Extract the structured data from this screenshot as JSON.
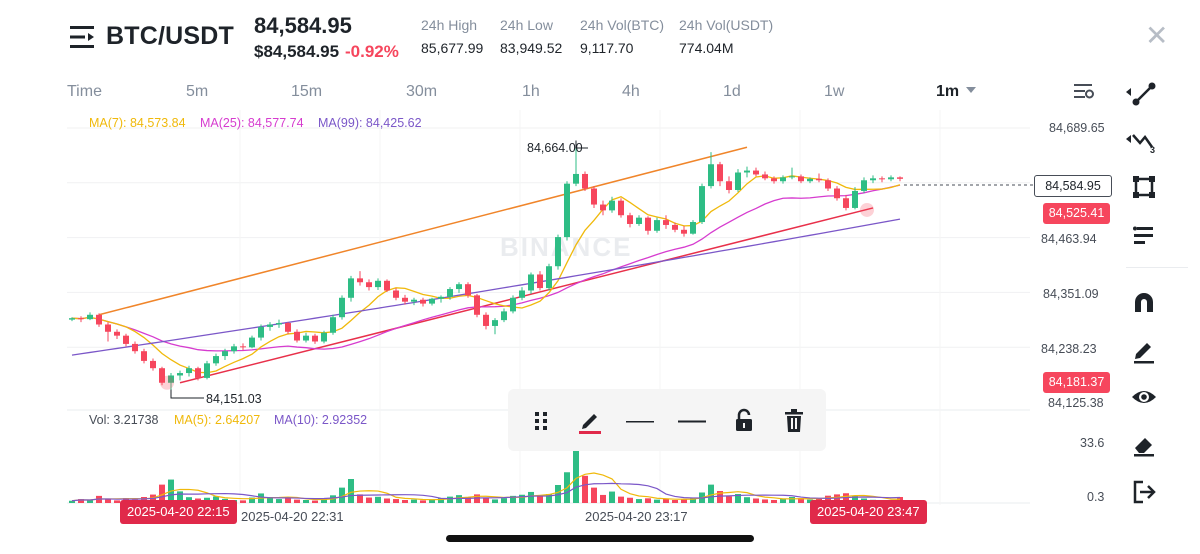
{
  "header": {
    "pair": "BTC/USDT",
    "last_price": "84,584.95",
    "last_price_usd": "$84,584.95",
    "change": "-0.92%",
    "stats": [
      {
        "label": "24h High",
        "value": "85,677.99"
      },
      {
        "label": "24h Low",
        "value": "83,949.52"
      },
      {
        "label": "24h Vol(BTC)",
        "value": "9,117.70"
      },
      {
        "label": "24h Vol(USDT)",
        "value": "774.04M"
      }
    ]
  },
  "timeframes": [
    "Time",
    "5m",
    "15m",
    "30m",
    "1h",
    "4h",
    "1d",
    "1w",
    "1m"
  ],
  "active_timeframe": "1m",
  "ma_legend": {
    "ma7": "MA(7): 84,573.84",
    "ma25": "MA(25): 84,577.74",
    "ma99": "MA(99): 84,425.62"
  },
  "vol_legend": {
    "vol": "Vol: 3.21738",
    "ma5": "MA(5): 2.64207",
    "ma10": "MA(10): 2.92352"
  },
  "price_axis": [
    "84,689.65",
    "84,463.94",
    "84,351.09",
    "84,238.23",
    "84,125.38"
  ],
  "volume_axis": [
    "33.6",
    "0.3"
  ],
  "current_price_tag": "84,584.95",
  "red_tags": [
    "84,525.41",
    "84,181.37"
  ],
  "annotations": {
    "high": "84,664.00",
    "low": "84,151.03"
  },
  "time_labels": [
    "2025-04-20 22:31",
    "2025-04-20 23:17"
  ],
  "time_tags": [
    "2025-04-20 22:15",
    "2025-04-20 23:47"
  ],
  "watermark": "BINANCE",
  "colors": {
    "up": "#2ebd85",
    "down": "#f6465d",
    "ma7": "#f0b90b",
    "ma25": "#d63ccf",
    "ma99": "#7b57c8",
    "channel_top": "#f0852a",
    "channel_bottom": "#e8304a"
  },
  "candles": [
    {
      "o": 84295,
      "h": 84300,
      "l": 84292,
      "c": 84298
    },
    {
      "o": 84298,
      "h": 84302,
      "l": 84290,
      "c": 84296
    },
    {
      "o": 84296,
      "h": 84310,
      "l": 84294,
      "c": 84305
    },
    {
      "o": 84305,
      "h": 84308,
      "l": 84280,
      "c": 84285
    },
    {
      "o": 84285,
      "h": 84290,
      "l": 84250,
      "c": 84270
    },
    {
      "o": 84270,
      "h": 84275,
      "l": 84255,
      "c": 84262
    },
    {
      "o": 84262,
      "h": 84266,
      "l": 84240,
      "c": 84245
    },
    {
      "o": 84245,
      "h": 84250,
      "l": 84225,
      "c": 84230
    },
    {
      "o": 84230,
      "h": 84235,
      "l": 84205,
      "c": 84210
    },
    {
      "o": 84210,
      "h": 84215,
      "l": 84190,
      "c": 84195
    },
    {
      "o": 84195,
      "h": 84198,
      "l": 84160,
      "c": 84165
    },
    {
      "o": 84165,
      "h": 84185,
      "l": 84151,
      "c": 84180
    },
    {
      "o": 84180,
      "h": 84190,
      "l": 84170,
      "c": 84185
    },
    {
      "o": 84185,
      "h": 84200,
      "l": 84178,
      "c": 84195
    },
    {
      "o": 84195,
      "h": 84198,
      "l": 84170,
      "c": 84175
    },
    {
      "o": 84175,
      "h": 84210,
      "l": 84172,
      "c": 84205
    },
    {
      "o": 84205,
      "h": 84225,
      "l": 84200,
      "c": 84220
    },
    {
      "o": 84220,
      "h": 84235,
      "l": 84212,
      "c": 84230
    },
    {
      "o": 84230,
      "h": 84245,
      "l": 84225,
      "c": 84240
    },
    {
      "o": 84240,
      "h": 84246,
      "l": 84232,
      "c": 84238
    },
    {
      "o": 84238,
      "h": 84262,
      "l": 84236,
      "c": 84258
    },
    {
      "o": 84258,
      "h": 84285,
      "l": 84252,
      "c": 84280
    },
    {
      "o": 84280,
      "h": 84290,
      "l": 84272,
      "c": 84285
    },
    {
      "o": 84285,
      "h": 84295,
      "l": 84278,
      "c": 84288
    },
    {
      "o": 84288,
      "h": 84290,
      "l": 84265,
      "c": 84270
    },
    {
      "o": 84270,
      "h": 84275,
      "l": 84248,
      "c": 84252
    },
    {
      "o": 84252,
      "h": 84268,
      "l": 84248,
      "c": 84262
    },
    {
      "o": 84262,
      "h": 84266,
      "l": 84245,
      "c": 84250
    },
    {
      "o": 84250,
      "h": 84272,
      "l": 84246,
      "c": 84268
    },
    {
      "o": 84268,
      "h": 84305,
      "l": 84264,
      "c": 84300
    },
    {
      "o": 84300,
      "h": 84345,
      "l": 84295,
      "c": 84340
    },
    {
      "o": 84340,
      "h": 84385,
      "l": 84332,
      "c": 84380
    },
    {
      "o": 84380,
      "h": 84395,
      "l": 84365,
      "c": 84372
    },
    {
      "o": 84372,
      "h": 84378,
      "l": 84355,
      "c": 84362
    },
    {
      "o": 84362,
      "h": 84380,
      "l": 84356,
      "c": 84375
    },
    {
      "o": 84375,
      "h": 84378,
      "l": 84352,
      "c": 84355
    },
    {
      "o": 84355,
      "h": 84360,
      "l": 84335,
      "c": 84340
    },
    {
      "o": 84340,
      "h": 84346,
      "l": 84326,
      "c": 84332
    },
    {
      "o": 84332,
      "h": 84340,
      "l": 84325,
      "c": 84336
    },
    {
      "o": 84336,
      "h": 84340,
      "l": 84322,
      "c": 84328
    },
    {
      "o": 84328,
      "h": 84340,
      "l": 84324,
      "c": 84338
    },
    {
      "o": 84338,
      "h": 84345,
      "l": 84330,
      "c": 84342
    },
    {
      "o": 84342,
      "h": 84362,
      "l": 84336,
      "c": 84358
    },
    {
      "o": 84358,
      "h": 84372,
      "l": 84350,
      "c": 84368
    },
    {
      "o": 84368,
      "h": 84372,
      "l": 84340,
      "c": 84345
    },
    {
      "o": 84345,
      "h": 84348,
      "l": 84300,
      "c": 84305
    },
    {
      "o": 84305,
      "h": 84310,
      "l": 84275,
      "c": 84282
    },
    {
      "o": 84282,
      "h": 84298,
      "l": 84265,
      "c": 84294
    },
    {
      "o": 84294,
      "h": 84318,
      "l": 84290,
      "c": 84312
    },
    {
      "o": 84312,
      "h": 84345,
      "l": 84308,
      "c": 84340
    },
    {
      "o": 84340,
      "h": 84362,
      "l": 84335,
      "c": 84355
    },
    {
      "o": 84355,
      "h": 84392,
      "l": 84348,
      "c": 84388
    },
    {
      "o": 84388,
      "h": 84395,
      "l": 84355,
      "c": 84360
    },
    {
      "o": 84360,
      "h": 84410,
      "l": 84355,
      "c": 84405
    },
    {
      "o": 84405,
      "h": 84470,
      "l": 84398,
      "c": 84465
    },
    {
      "o": 84465,
      "h": 84580,
      "l": 84458,
      "c": 84575
    },
    {
      "o": 84575,
      "h": 84664,
      "l": 84570,
      "c": 84595
    },
    {
      "o": 84595,
      "h": 84600,
      "l": 84560,
      "c": 84565
    },
    {
      "o": 84565,
      "h": 84570,
      "l": 84525,
      "c": 84532
    },
    {
      "o": 84532,
      "h": 84540,
      "l": 84510,
      "c": 84520
    },
    {
      "o": 84520,
      "h": 84548,
      "l": 84515,
      "c": 84540
    },
    {
      "o": 84540,
      "h": 84545,
      "l": 84505,
      "c": 84510
    },
    {
      "o": 84510,
      "h": 84515,
      "l": 84485,
      "c": 84492
    },
    {
      "o": 84492,
      "h": 84510,
      "l": 84488,
      "c": 84505
    },
    {
      "o": 84505,
      "h": 84508,
      "l": 84470,
      "c": 84478
    },
    {
      "o": 84478,
      "h": 84505,
      "l": 84474,
      "c": 84500
    },
    {
      "o": 84500,
      "h": 84510,
      "l": 84482,
      "c": 84490
    },
    {
      "o": 84490,
      "h": 84495,
      "l": 84475,
      "c": 84480
    },
    {
      "o": 84480,
      "h": 84488,
      "l": 84466,
      "c": 84472
    },
    {
      "o": 84472,
      "h": 84500,
      "l": 84470,
      "c": 84496
    },
    {
      "o": 84496,
      "h": 84575,
      "l": 84492,
      "c": 84570
    },
    {
      "o": 84570,
      "h": 84640,
      "l": 84565,
      "c": 84615
    },
    {
      "o": 84615,
      "h": 84620,
      "l": 84570,
      "c": 84580
    },
    {
      "o": 84580,
      "h": 84590,
      "l": 84555,
      "c": 84562
    },
    {
      "o": 84562,
      "h": 84605,
      "l": 84558,
      "c": 84598
    },
    {
      "o": 84598,
      "h": 84610,
      "l": 84588,
      "c": 84602
    },
    {
      "o": 84602,
      "h": 84608,
      "l": 84590,
      "c": 84594
    },
    {
      "o": 84594,
      "h": 84600,
      "l": 84582,
      "c": 84586
    },
    {
      "o": 84586,
      "h": 84590,
      "l": 84575,
      "c": 84580
    },
    {
      "o": 84580,
      "h": 84592,
      "l": 84575,
      "c": 84588
    },
    {
      "o": 84588,
      "h": 84608,
      "l": 84584,
      "c": 84590
    },
    {
      "o": 84590,
      "h": 84594,
      "l": 84576,
      "c": 84580
    },
    {
      "o": 84580,
      "h": 84588,
      "l": 84576,
      "c": 84585
    },
    {
      "o": 84585,
      "h": 84596,
      "l": 84578,
      "c": 84582
    },
    {
      "o": 84582,
      "h": 84586,
      "l": 84560,
      "c": 84565
    },
    {
      "o": 84565,
      "h": 84570,
      "l": 84540,
      "c": 84545
    },
    {
      "o": 84545,
      "h": 84552,
      "l": 84520,
      "c": 84525
    },
    {
      "o": 84525,
      "h": 84568,
      "l": 84522,
      "c": 84560
    },
    {
      "o": 84560,
      "h": 84588,
      "l": 84556,
      "c": 84582
    },
    {
      "o": 84582,
      "h": 84592,
      "l": 84576,
      "c": 84586
    },
    {
      "o": 84586,
      "h": 84590,
      "l": 84578,
      "c": 84584
    },
    {
      "o": 84584,
      "h": 84592,
      "l": 84580,
      "c": 84588
    },
    {
      "o": 84588,
      "h": 84590,
      "l": 84580,
      "c": 84585
    }
  ],
  "volumes": [
    1.2,
    2.1,
    1.5,
    3.8,
    2.2,
    1.4,
    2.6,
    1.8,
    3.2,
    4.5,
    9.8,
    12.5,
    6.2,
    3.1,
    2.4,
    2.8,
    3.5,
    2.2,
    1.6,
    1.4,
    2.9,
    5.1,
    3.2,
    2.1,
    2.5,
    1.8,
    1.6,
    1.3,
    2.2,
    4.1,
    8.2,
    12.8,
    4.6,
    2.9,
    3.3,
    2.4,
    2.1,
    1.6,
    1.8,
    1.4,
    2.0,
    2.6,
    3.4,
    4.2,
    3.1,
    4.6,
    2.7,
    1.9,
    2.6,
    3.8,
    4.4,
    5.9,
    3.7,
    4.8,
    9.6,
    16.4,
    31.2,
    14.5,
    8.2,
    4.3,
    6.1,
    3.4,
    2.8,
    2.1,
    2.5,
    1.8,
    2.2,
    1.6,
    1.9,
    2.7,
    5.6,
    9.8,
    6.4,
    3.5,
    4.8,
    3.1,
    2.4,
    1.9,
    1.6,
    2.1,
    3.2,
    2.6,
    1.8,
    2.2,
    3.9,
    4.6,
    5.2,
    3.8,
    2.4,
    1.7,
    1.4,
    1.1,
    3.2
  ]
}
